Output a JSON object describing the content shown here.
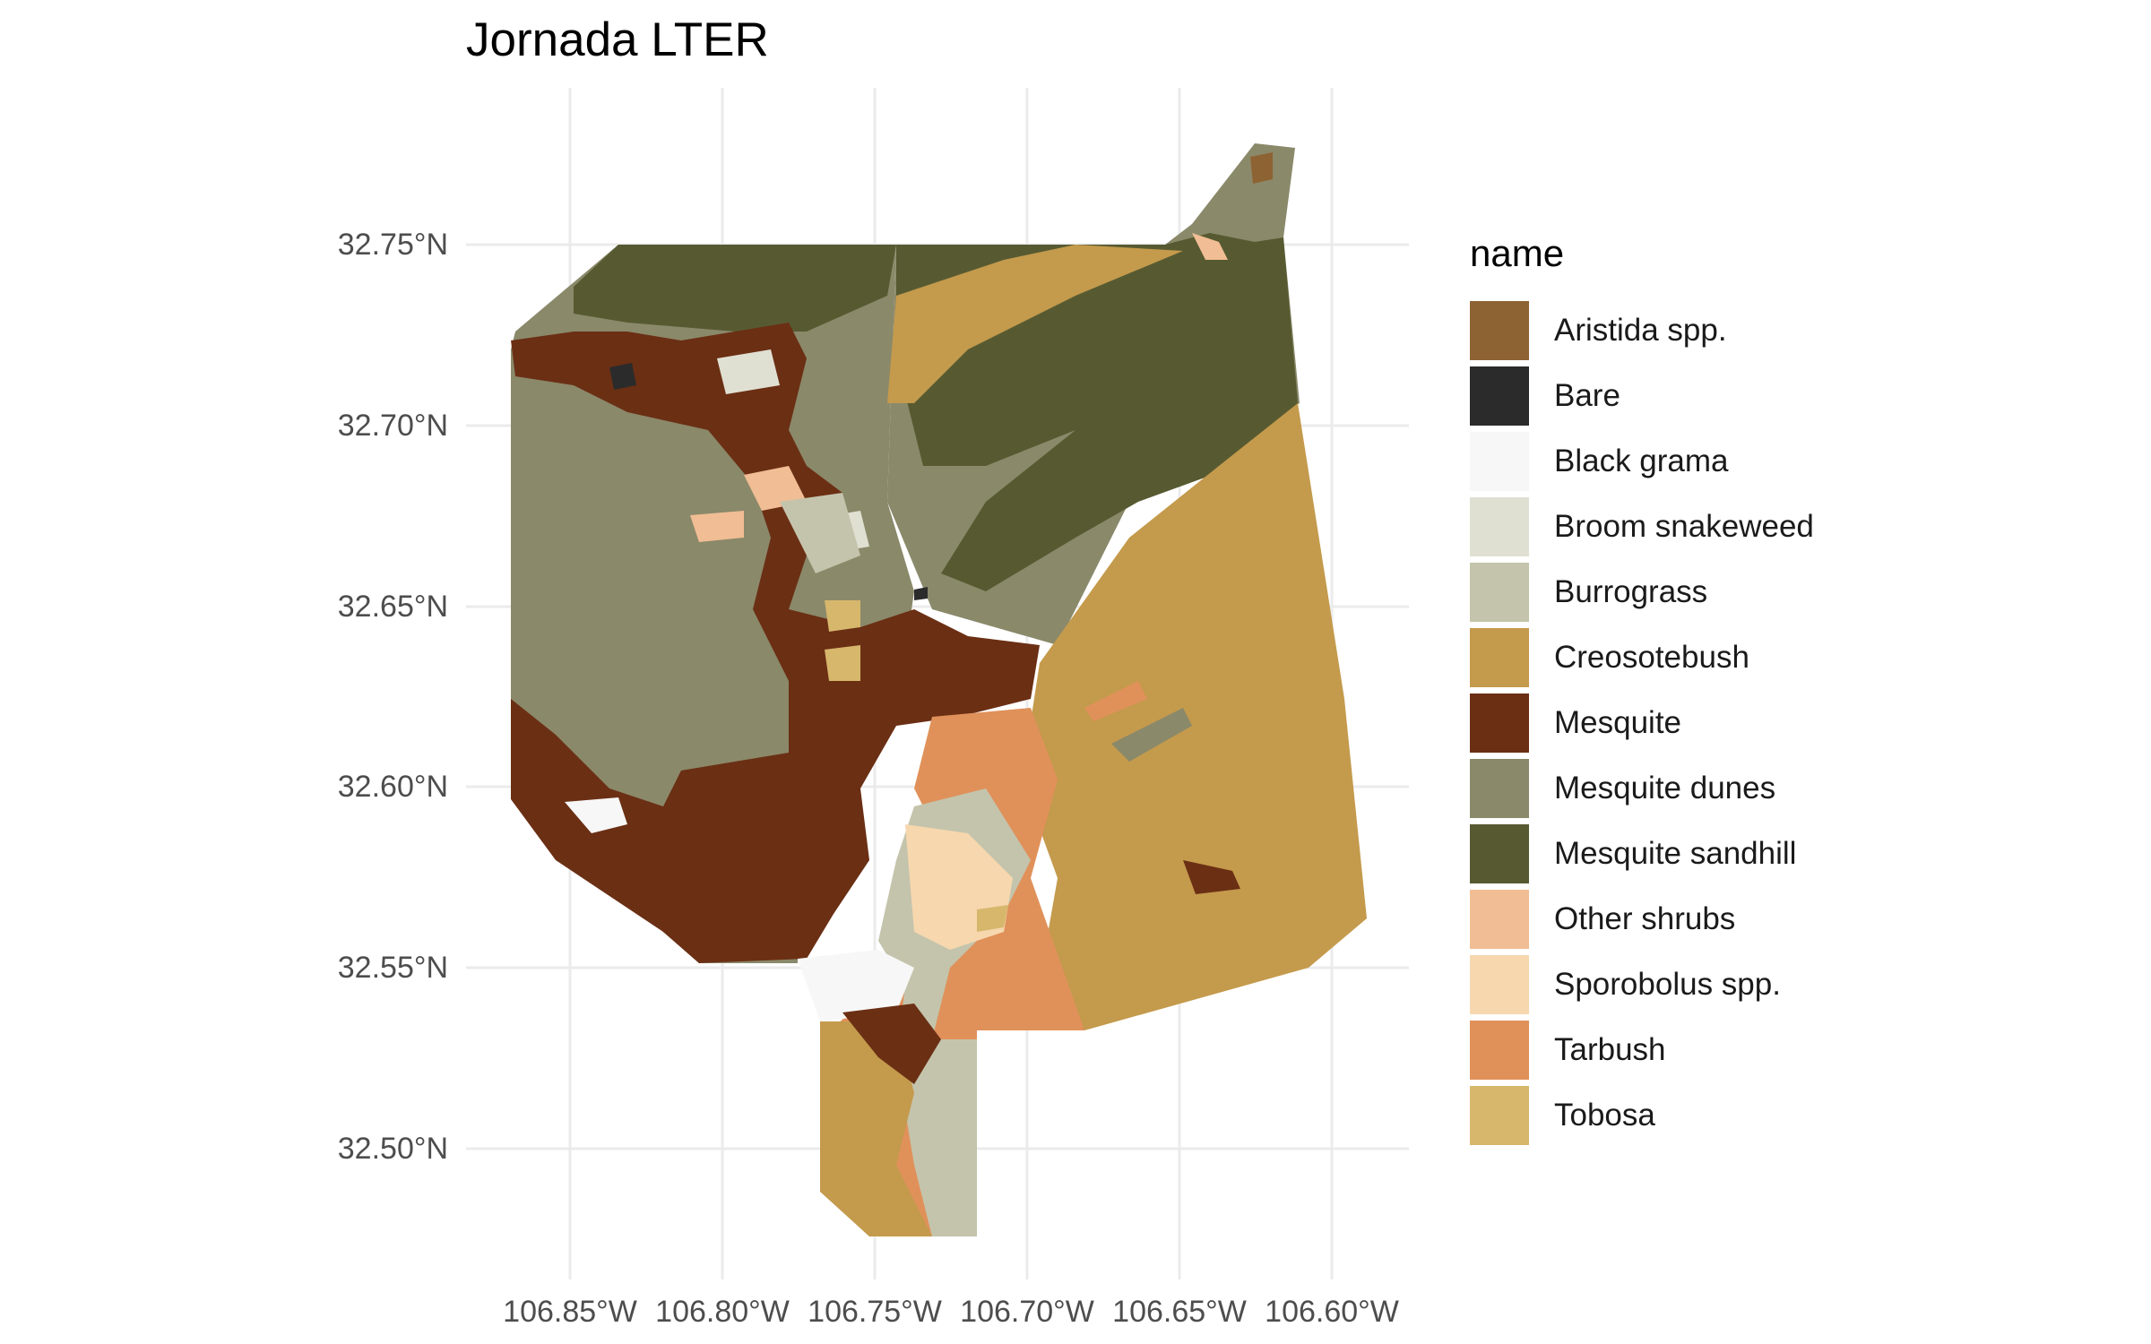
{
  "chart_data": {
    "type": "map",
    "title": "Jornada LTER",
    "x_ticks": [
      "106.85°W",
      "106.80°W",
      "106.75°W",
      "106.70°W",
      "106.65°W",
      "106.60°W"
    ],
    "y_ticks": [
      "32.75°N",
      "32.70°N",
      "32.65°N",
      "32.60°N",
      "32.55°N",
      "32.50°N"
    ],
    "grid": true,
    "legend": {
      "title": "name",
      "placement": "right",
      "items": [
        {
          "label": "Aristida spp.",
          "color": "#8e6333"
        },
        {
          "label": "Bare",
          "color": "#2b2b2b"
        },
        {
          "label": "Black grama",
          "color": "#f7f7f7"
        },
        {
          "label": "Broom snakeweed",
          "color": "#e0e0d2"
        },
        {
          "label": "Burrograss",
          "color": "#c4c4ac"
        },
        {
          "label": "Creosotebush",
          "color": "#c49a4c"
        },
        {
          "label": "Mesquite",
          "color": "#6b2f14"
        },
        {
          "label": "Mesquite dunes",
          "color": "#8a896a"
        },
        {
          "label": "Mesquite sandhill",
          "color": "#575a31"
        },
        {
          "label": "Other shrubs",
          "color": "#f1bd94"
        },
        {
          "label": "Sporobolus spp.",
          "color": "#f6d7ae"
        },
        {
          "label": "Tarbush",
          "color": "#e0915a"
        },
        {
          "label": "Tobosa",
          "color": "#d7b76c"
        }
      ]
    }
  }
}
